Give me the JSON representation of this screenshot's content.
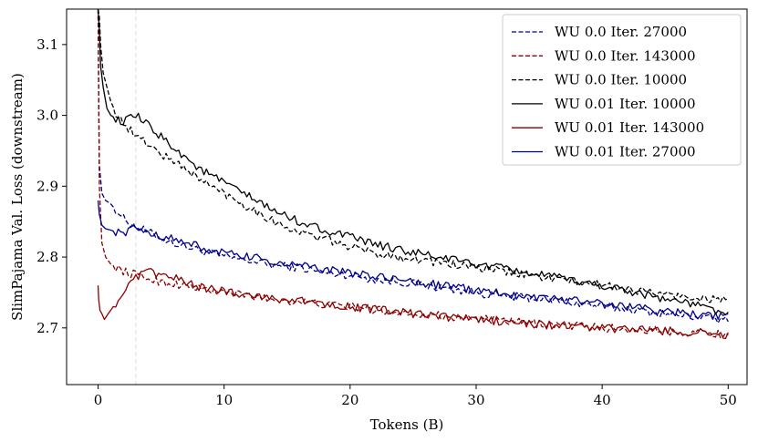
{
  "chart_data": {
    "type": "line",
    "title": "",
    "xlabel": "Tokens (B)",
    "ylabel": "SlimPajama Val. Loss (downstream)",
    "xlim": [
      -2.5,
      51.5
    ],
    "ylim": [
      2.62,
      3.15
    ],
    "xticks": [
      0,
      10,
      20,
      30,
      40,
      50
    ],
    "yticks": [
      2.7,
      2.8,
      2.9,
      3.0,
      3.1
    ],
    "grid": false,
    "legend_position": "top-right",
    "reference_line": {
      "x": 3.0,
      "style": "dashed",
      "color": "#dddddd"
    },
    "series": [
      {
        "name": "WU 0.0 Iter. 27000",
        "color": "#00008b",
        "dash": "dashed",
        "x": [
          0,
          0.1,
          0.3,
          0.6,
          1,
          1.5,
          2,
          3,
          4,
          5,
          6,
          7,
          8,
          10,
          12,
          14,
          16,
          18,
          20,
          22,
          24,
          26,
          28,
          30,
          32,
          34,
          36,
          38,
          40,
          42,
          44,
          46,
          48,
          49,
          50
        ],
        "y": [
          3.15,
          2.93,
          2.89,
          2.88,
          2.875,
          2.865,
          2.855,
          2.843,
          2.835,
          2.827,
          2.82,
          2.815,
          2.81,
          2.8,
          2.795,
          2.788,
          2.785,
          2.778,
          2.775,
          2.768,
          2.765,
          2.76,
          2.755,
          2.75,
          2.745,
          2.743,
          2.74,
          2.735,
          2.73,
          2.727,
          2.722,
          2.718,
          2.715,
          2.712,
          2.71
        ]
      },
      {
        "name": "WU 0.0 Iter. 143000",
        "color": "#8b0000",
        "dash": "dashed",
        "x": [
          0,
          0.1,
          0.3,
          0.6,
          1,
          1.5,
          2,
          3,
          4,
          5,
          6,
          7,
          8,
          10,
          12,
          14,
          16,
          18,
          20,
          22,
          24,
          26,
          28,
          30,
          32,
          34,
          36,
          38,
          40,
          42,
          44,
          46,
          48,
          49,
          50
        ],
        "y": [
          3.15,
          2.9,
          2.82,
          2.8,
          2.79,
          2.785,
          2.78,
          2.775,
          2.77,
          2.765,
          2.762,
          2.76,
          2.755,
          2.75,
          2.745,
          2.74,
          2.737,
          2.733,
          2.73,
          2.726,
          2.722,
          2.719,
          2.716,
          2.713,
          2.71,
          2.707,
          2.705,
          2.703,
          2.7,
          2.698,
          2.697,
          2.695,
          2.693,
          2.692,
          2.69
        ]
      },
      {
        "name": "WU 0.0 Iter. 10000",
        "color": "#000000",
        "dash": "dashed",
        "x": [
          0,
          0.1,
          0.2,
          0.4,
          0.7,
          1,
          1.5,
          2,
          3,
          4,
          5,
          6,
          7,
          8,
          10,
          12,
          14,
          16,
          18,
          20,
          22,
          24,
          26,
          28,
          30,
          32,
          34,
          36,
          38,
          40,
          42,
          44,
          46,
          48,
          49,
          50
        ],
        "y": [
          3.15,
          3.14,
          3.1,
          3.06,
          3.04,
          3.02,
          3.0,
          2.99,
          2.97,
          2.96,
          2.945,
          2.935,
          2.925,
          2.91,
          2.89,
          2.87,
          2.85,
          2.835,
          2.825,
          2.815,
          2.805,
          2.8,
          2.795,
          2.79,
          2.785,
          2.78,
          2.775,
          2.77,
          2.765,
          2.76,
          2.755,
          2.75,
          2.745,
          2.742,
          2.74,
          2.74
        ]
      },
      {
        "name": "WU 0.01 Iter. 10000",
        "color": "#000000",
        "dash": "solid",
        "x": [
          0,
          0.1,
          0.2,
          0.4,
          0.7,
          1,
          1.5,
          2,
          3,
          4,
          5,
          6,
          7,
          8,
          10,
          12,
          14,
          16,
          18,
          20,
          22,
          24,
          26,
          28,
          30,
          32,
          34,
          36,
          38,
          40,
          42,
          44,
          46,
          48,
          49,
          50
        ],
        "y": [
          3.15,
          3.12,
          3.07,
          3.04,
          3.01,
          3.0,
          2.995,
          2.99,
          3.0,
          2.985,
          2.97,
          2.955,
          2.94,
          2.925,
          2.905,
          2.885,
          2.865,
          2.85,
          2.838,
          2.828,
          2.818,
          2.81,
          2.803,
          2.797,
          2.79,
          2.784,
          2.778,
          2.772,
          2.766,
          2.76,
          2.753,
          2.745,
          2.738,
          2.73,
          2.725,
          2.72
        ]
      },
      {
        "name": "WU 0.01 Iter. 143000",
        "color": "#8b0000",
        "dash": "solid",
        "x": [
          0,
          0.05,
          0.15,
          0.3,
          0.5,
          0.8,
          1.2,
          1.8,
          2.5,
          3,
          3.5,
          4,
          5,
          6,
          7,
          8,
          10,
          12,
          14,
          16,
          18,
          20,
          22,
          24,
          26,
          28,
          30,
          32,
          34,
          36,
          38,
          40,
          42,
          44,
          46,
          48,
          49,
          50
        ],
        "y": [
          2.76,
          2.74,
          2.725,
          2.72,
          2.712,
          2.72,
          2.73,
          2.745,
          2.76,
          2.77,
          2.775,
          2.78,
          2.775,
          2.77,
          2.765,
          2.758,
          2.752,
          2.747,
          2.742,
          2.738,
          2.735,
          2.73,
          2.726,
          2.722,
          2.718,
          2.715,
          2.712,
          2.709,
          2.706,
          2.704,
          2.702,
          2.7,
          2.698,
          2.697,
          2.695,
          2.693,
          2.692,
          2.69
        ]
      },
      {
        "name": "WU 0.01 Iter. 27000",
        "color": "#00008b",
        "dash": "solid",
        "x": [
          0,
          0.1,
          0.3,
          0.6,
          1,
          1.5,
          2,
          3,
          4,
          5,
          6,
          7,
          8,
          10,
          12,
          14,
          16,
          18,
          20,
          22,
          24,
          26,
          28,
          30,
          32,
          34,
          36,
          38,
          40,
          42,
          44,
          46,
          48,
          49,
          50
        ],
        "y": [
          2.88,
          2.86,
          2.845,
          2.84,
          2.838,
          2.835,
          2.835,
          2.84,
          2.835,
          2.83,
          2.825,
          2.82,
          2.815,
          2.805,
          2.8,
          2.793,
          2.788,
          2.782,
          2.778,
          2.772,
          2.768,
          2.763,
          2.758,
          2.753,
          2.749,
          2.745,
          2.742,
          2.738,
          2.734,
          2.73,
          2.726,
          2.722,
          2.718,
          2.716,
          2.715
        ]
      }
    ]
  }
}
